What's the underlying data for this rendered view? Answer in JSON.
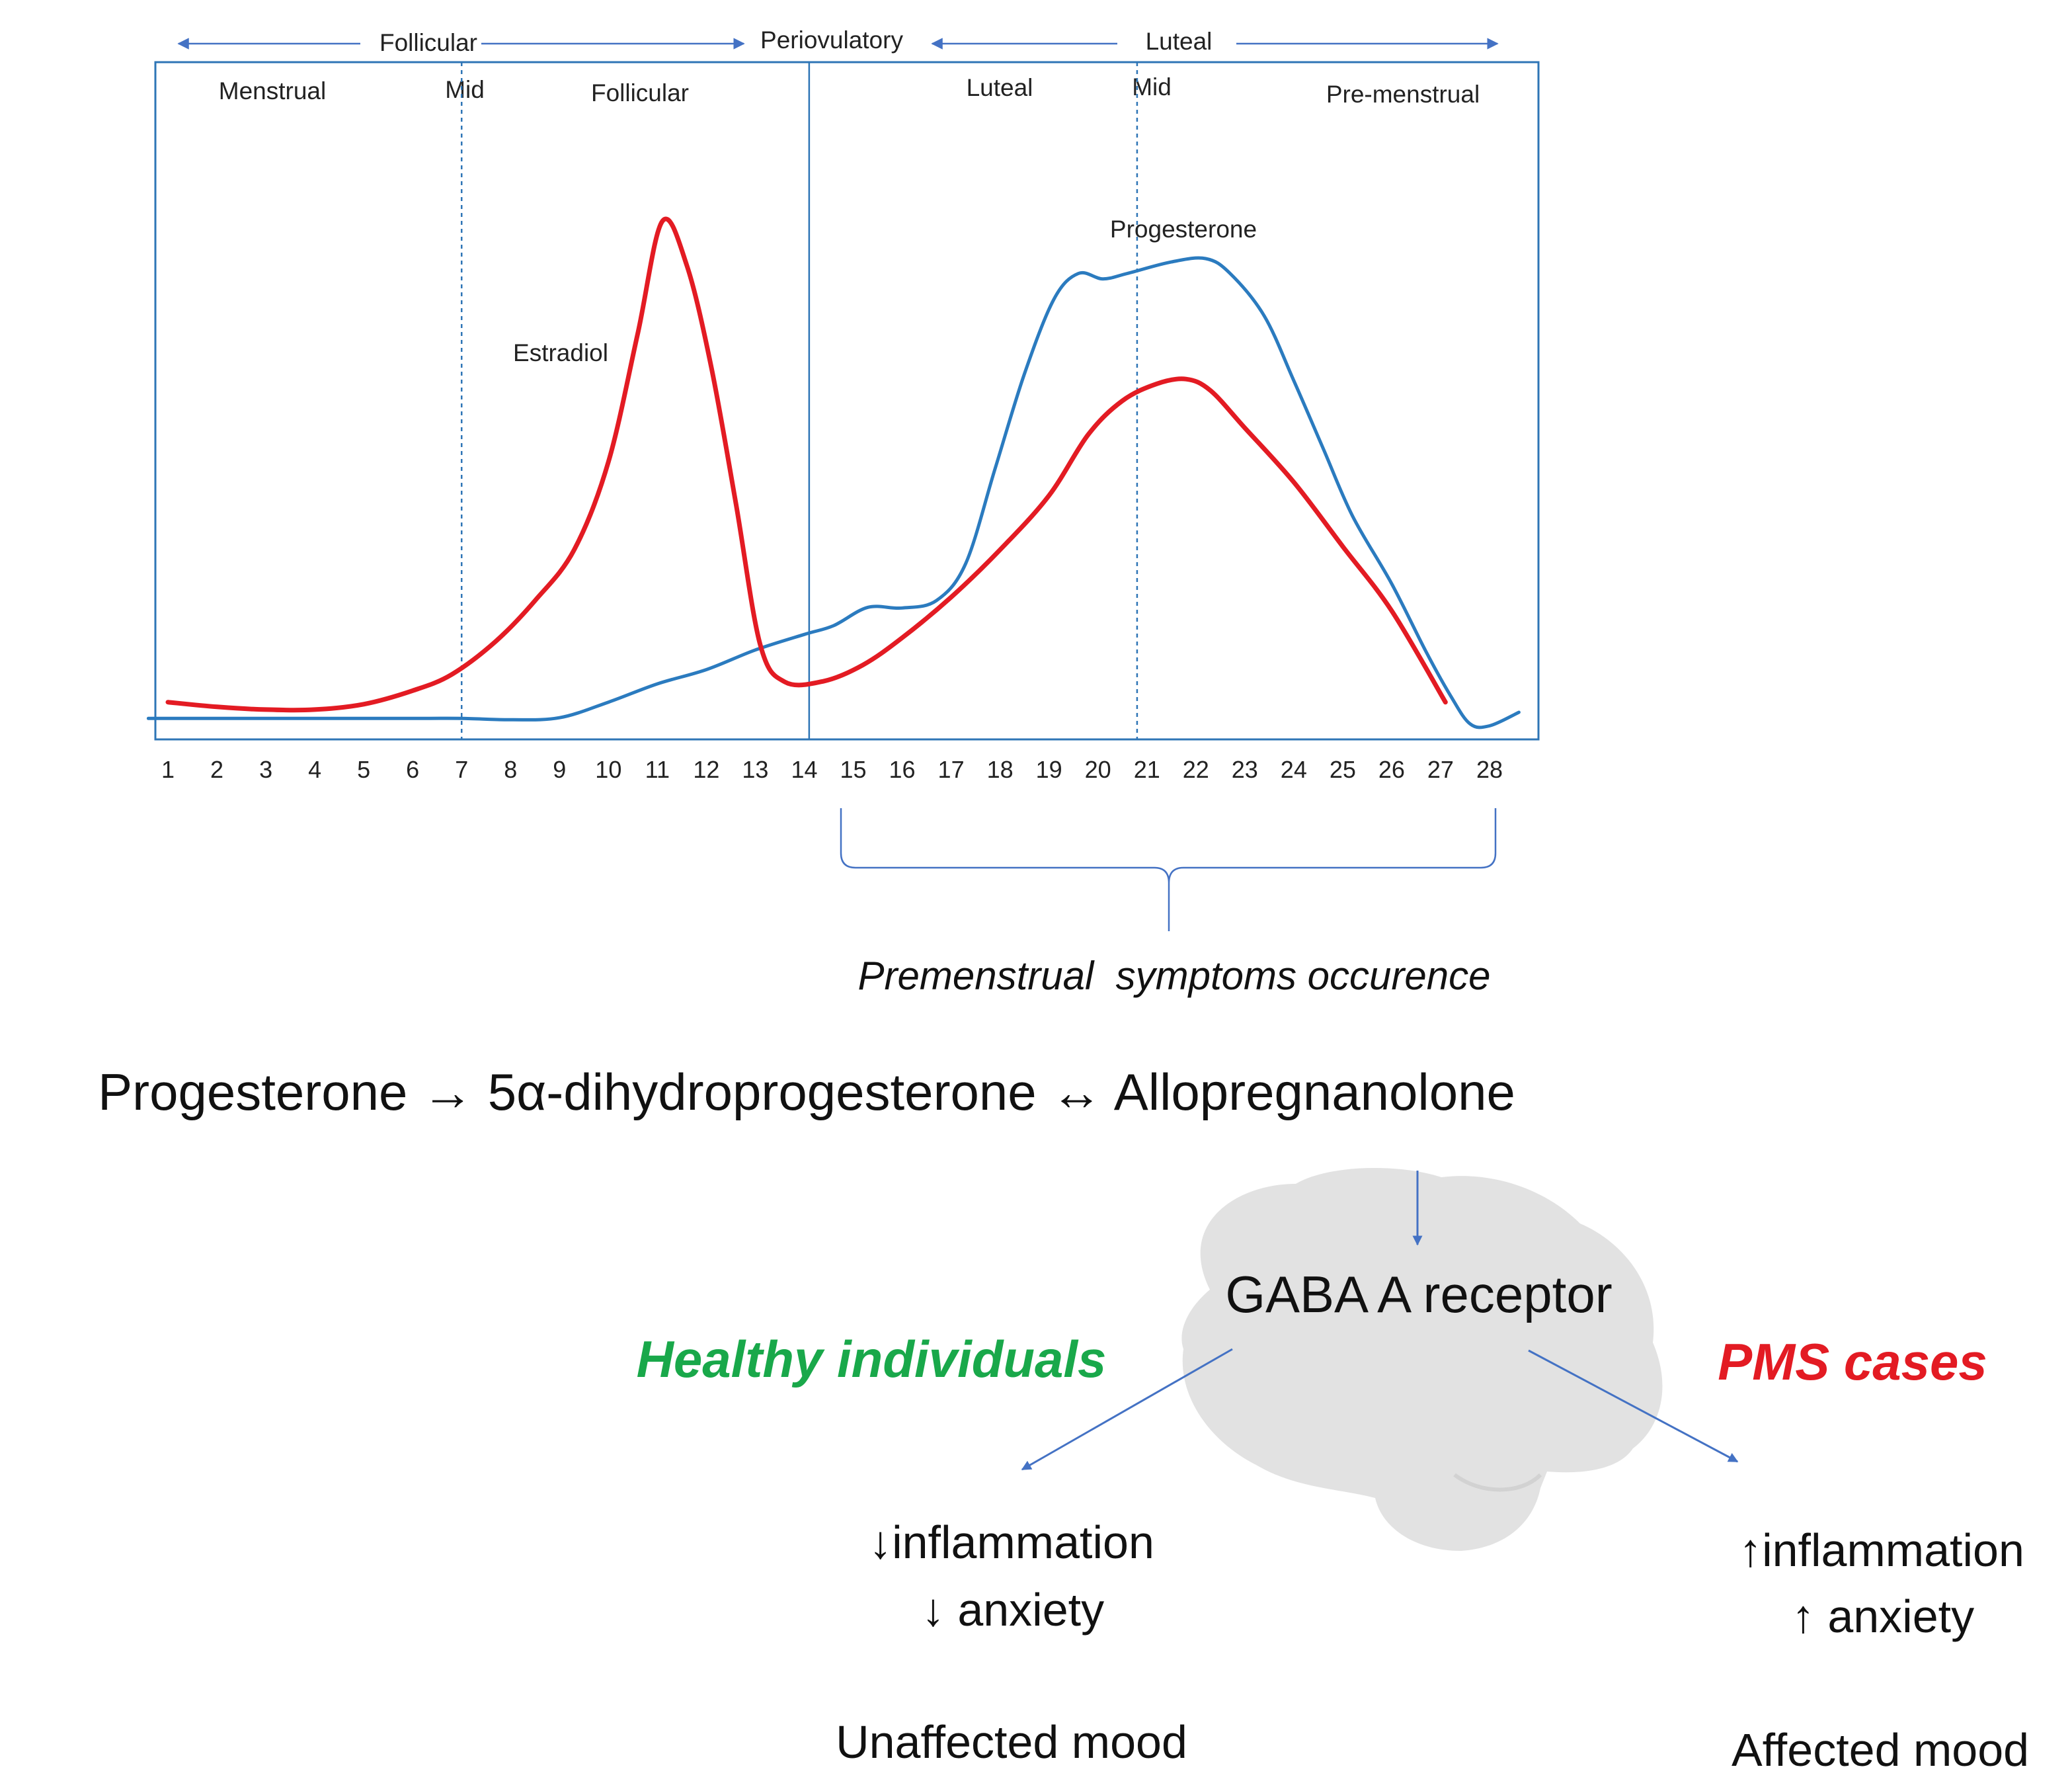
{
  "phases_top": {
    "follicular": "Follicular",
    "periovulatory": "Periovulatory",
    "luteal": "Luteal"
  },
  "subphases": {
    "menstrual": "Menstrual",
    "mid_follicular": "Mid",
    "follicular": "Follicular",
    "luteal": "Luteal",
    "mid_luteal": "Mid",
    "premenstrual": "Pre-menstrual"
  },
  "chart_data": {
    "type": "line",
    "title": "",
    "xlabel": "",
    "ylabel": "",
    "x": [
      1,
      2,
      3,
      4,
      5,
      6,
      7,
      8,
      9,
      10,
      11,
      12,
      13,
      14,
      15,
      16,
      17,
      18,
      19,
      20,
      21,
      22,
      23,
      24,
      25,
      26,
      27,
      28
    ],
    "xlim": [
      0.5,
      29
    ],
    "ylim": [
      0,
      100
    ],
    "grid": false,
    "vertical_markers": [
      {
        "x": 7.0,
        "style": "dashed"
      },
      {
        "x": 14.1,
        "style": "solid"
      },
      {
        "x": 20.8,
        "style": "dashed"
      }
    ],
    "series": [
      {
        "name": "Estradiol",
        "color": "#e31b23",
        "points": [
          [
            1.0,
            5.5
          ],
          [
            2.0,
            4.8
          ],
          [
            3.0,
            4.4
          ],
          [
            4.0,
            4.4
          ],
          [
            5.0,
            5.2
          ],
          [
            6.0,
            7.2
          ],
          [
            6.8,
            9.6
          ],
          [
            7.7,
            14.5
          ],
          [
            8.5,
            20.5
          ],
          [
            9.3,
            28
          ],
          [
            10.0,
            41
          ],
          [
            10.6,
            60
          ],
          [
            11.1,
            76.5
          ],
          [
            11.6,
            70
          ],
          [
            12.1,
            55
          ],
          [
            12.6,
            35
          ],
          [
            13.1,
            14
          ],
          [
            13.6,
            8.5
          ],
          [
            14.4,
            8.6
          ],
          [
            15.2,
            11
          ],
          [
            16.0,
            15
          ],
          [
            17.0,
            21
          ],
          [
            18.0,
            28
          ],
          [
            19.0,
            36
          ],
          [
            19.8,
            45
          ],
          [
            20.5,
            50
          ],
          [
            21.2,
            52.5
          ],
          [
            21.8,
            53.2
          ],
          [
            22.3,
            51.5
          ],
          [
            23.0,
            46
          ],
          [
            24.0,
            38
          ],
          [
            25.0,
            28.5
          ],
          [
            26.0,
            19
          ],
          [
            27.1,
            5.5
          ]
        ]
      },
      {
        "name": "Progesterone",
        "color": "#2b7bbf",
        "points": [
          [
            0.6,
            3.1
          ],
          [
            3.0,
            3.1
          ],
          [
            6.0,
            3.1
          ],
          [
            7.0,
            3.1
          ],
          [
            8.0,
            2.9
          ],
          [
            9.0,
            3.2
          ],
          [
            10.0,
            5.5
          ],
          [
            11.0,
            8.2
          ],
          [
            12.0,
            10.3
          ],
          [
            13.0,
            13.2
          ],
          [
            14.0,
            15.5
          ],
          [
            14.6,
            16.8
          ],
          [
            15.3,
            19.5
          ],
          [
            16.0,
            19.4
          ],
          [
            16.7,
            20.5
          ],
          [
            17.3,
            26
          ],
          [
            17.9,
            40
          ],
          [
            18.5,
            54
          ],
          [
            19.1,
            65
          ],
          [
            19.6,
            68.8
          ],
          [
            20.1,
            68
          ],
          [
            20.6,
            68.8
          ],
          [
            21.5,
            70.5
          ],
          [
            22.2,
            71
          ],
          [
            22.7,
            68.8
          ],
          [
            23.4,
            62.5
          ],
          [
            24.0,
            53
          ],
          [
            24.6,
            43
          ],
          [
            25.2,
            33
          ],
          [
            26.0,
            23
          ],
          [
            26.7,
            13
          ],
          [
            27.2,
            6.5
          ],
          [
            27.6,
            2.3
          ],
          [
            28.0,
            2
          ],
          [
            28.6,
            4
          ]
        ]
      }
    ],
    "annotations": [
      "Estradiol",
      "Progesterone"
    ]
  },
  "brace_label": "Premenstrual  symptoms occurence",
  "pathway": {
    "step1": "Progesterone",
    "arrow1": "→",
    "step2": "5α-dihydroprogesterone",
    "arrow2": "↔",
    "step3": "Allopregnanolone"
  },
  "receptor": "GABA A receptor",
  "healthy": {
    "title": "Healthy individuals",
    "color": "#19a84a",
    "inflammation": "↓inflammation",
    "anxiety": "↓ anxiety",
    "mood": "Unaffected mood"
  },
  "pms": {
    "title": "PMS cases",
    "color": "#e31b23",
    "inflammation": "↑inflammation",
    "anxiety": "↑ anxiety",
    "mood": "Affected mood"
  },
  "colors": {
    "frame": "#2e75b6",
    "arrow": "#4472c4",
    "brain": "#e2e2e2"
  }
}
